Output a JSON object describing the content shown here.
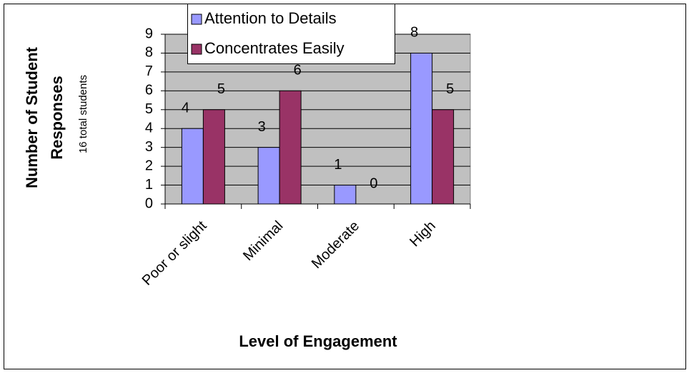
{
  "chart_data": {
    "type": "bar",
    "xlabel": "Level of Engagement",
    "ylabel": "Number of Student Responses",
    "ylabel_note": "16 total students",
    "categories": [
      "Poor or slight",
      "Minimal",
      "Moderate",
      "High"
    ],
    "series": [
      {
        "name": "Attention to Details",
        "color": "#9999ff",
        "values": [
          4,
          3,
          1,
          8
        ]
      },
      {
        "name": "Concentrates Easily",
        "color": "#993366",
        "values": [
          5,
          6,
          0,
          5
        ]
      }
    ],
    "ylim": [
      0,
      9
    ],
    "yticks": [
      0,
      1,
      2,
      3,
      4,
      5,
      6,
      7,
      8,
      9
    ],
    "grid": true,
    "legend": "top",
    "plot_background": "#c0c0c0"
  }
}
